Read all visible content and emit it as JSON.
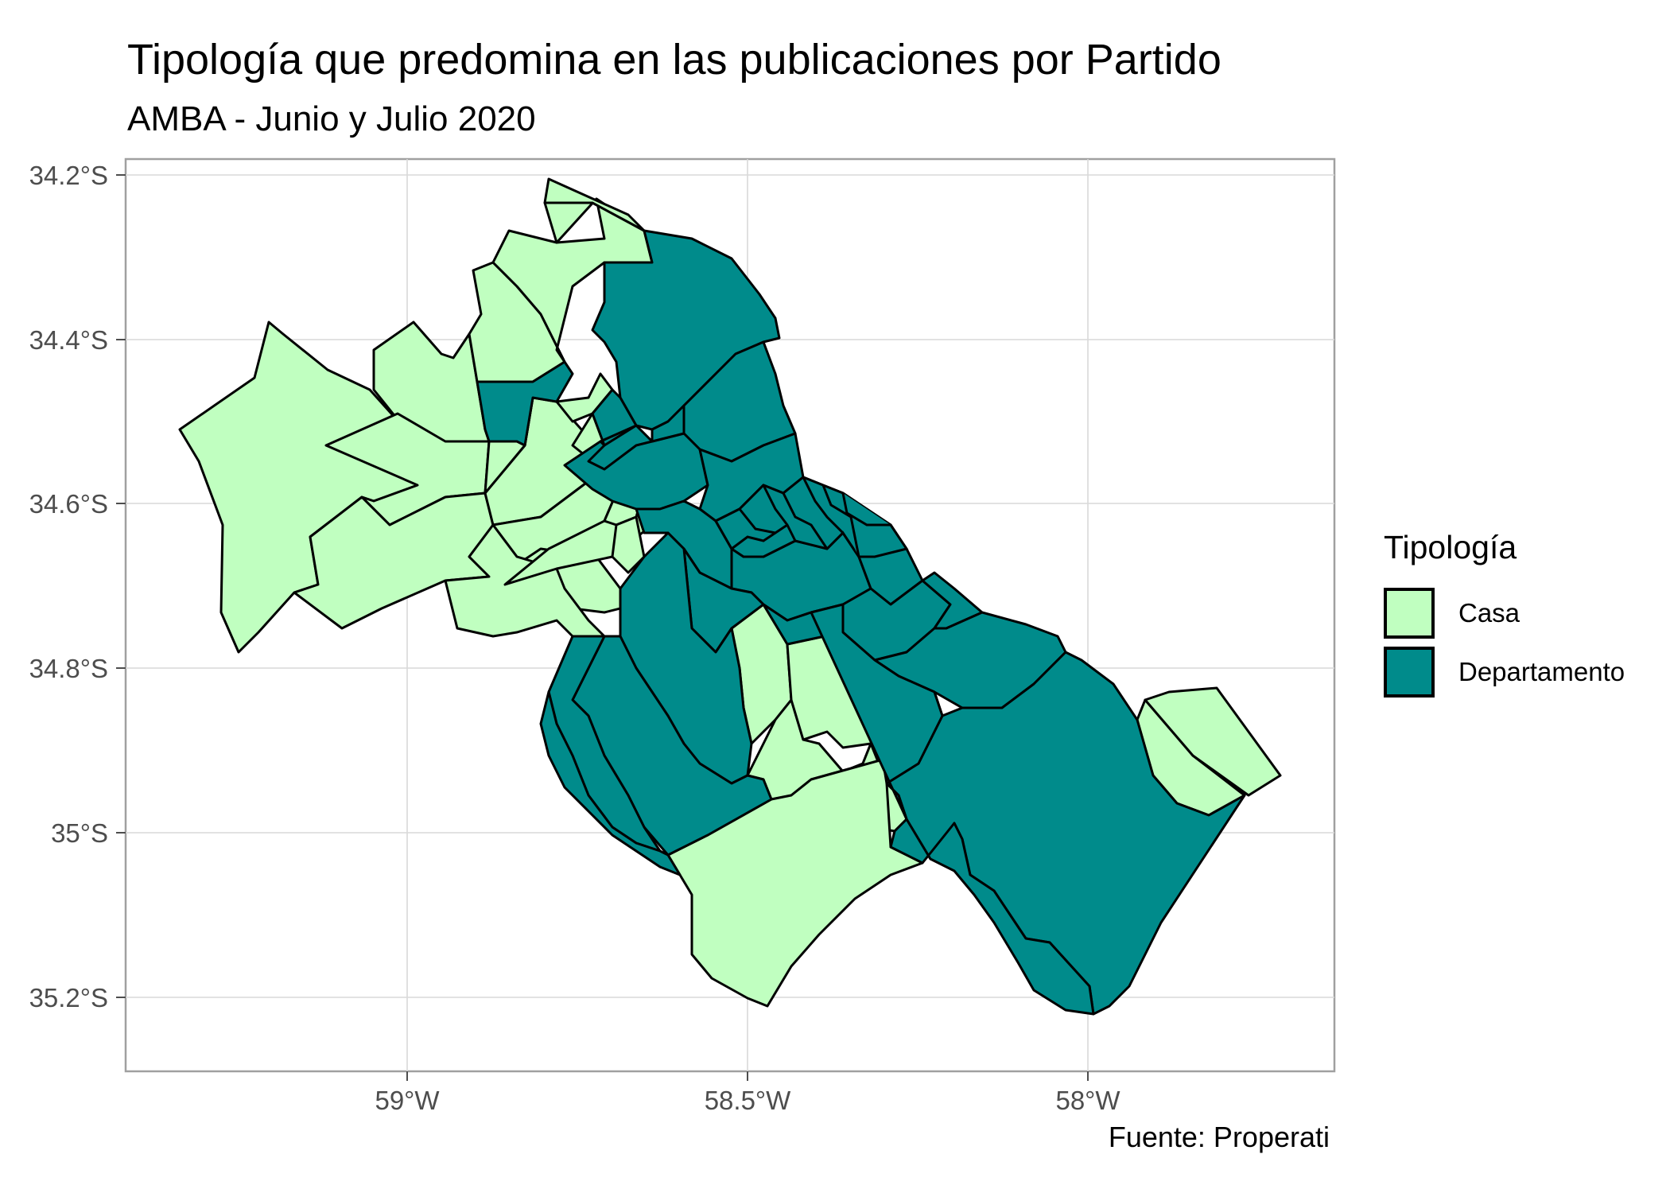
{
  "title": "Tipología que predomina en las publicaciones por Partido",
  "subtitle": "AMBA - Junio y Julio 2020",
  "caption": "Fuente: Properati",
  "colors": {
    "casa": "#c0ffc0",
    "departamento": "#008b8b",
    "border": "#000000",
    "grid": "#d9d9d9",
    "panel_border": "#a0a0a0"
  },
  "axes": {
    "x_ticks": [
      "59°W",
      "58.5°W",
      "58°W"
    ],
    "y_ticks": [
      "34.2°S",
      "34.4°S",
      "34.6°S",
      "34.8°S",
      "35°S",
      "35.2°S"
    ]
  },
  "legend": {
    "title": "Tipología",
    "items": [
      {
        "label": "Casa",
        "color": "#c0ffc0"
      },
      {
        "label": "Departamento",
        "color": "#008b8b"
      }
    ]
  }
}
